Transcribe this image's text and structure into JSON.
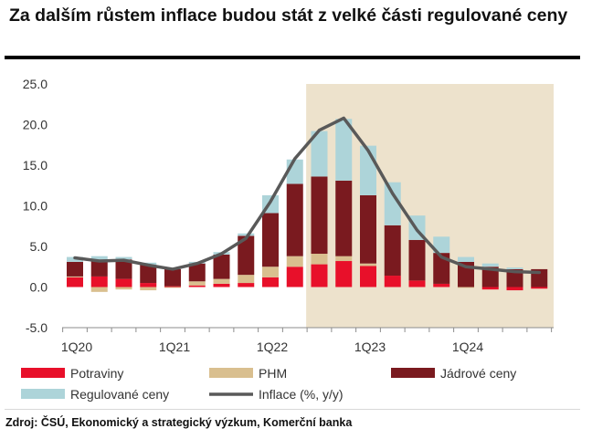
{
  "title": "Za dalším růstem inflace budou stát z velké části regulované ceny",
  "source": "Zdroj: ČSÚ, Ekonomický a strategický výzkum, Komerční banka",
  "colors": {
    "potraviny": "#e8102a",
    "phm": "#d9bf8f",
    "jadrove": "#7a1a1f",
    "regulovane": "#add4d9",
    "inflace": "#595959",
    "forecast": "#ede2cc"
  },
  "chart_data": {
    "type": "bar",
    "stacked": true,
    "ylim": [
      -5,
      25
    ],
    "yticks": [
      "25.0",
      "20.0",
      "15.0",
      "10.0",
      "5.0",
      "0.0",
      "-5.0"
    ],
    "xtick_labels": [
      {
        "label": "1Q20",
        "index": 0
      },
      {
        "label": "1Q21",
        "index": 4
      },
      {
        "label": "1Q22",
        "index": 8
      },
      {
        "label": "1Q23",
        "index": 12
      },
      {
        "label": "1Q24",
        "index": 16
      }
    ],
    "categories": [
      "Q1 2020",
      "Q2 2020",
      "Q3 2020",
      "Q4 2020",
      "Q1 2021",
      "Q2 2021",
      "Q3 2021",
      "Q4 2021",
      "Q1 2022",
      "Q2 2022",
      "Q3 2022",
      "Q4 2022",
      "Q1 2023",
      "Q2 2023",
      "Q3 2023",
      "Q4 2023",
      "Q1 2024",
      "Q2 2024",
      "Q3 2024",
      "Q4 2024"
    ],
    "forecast_from_index": 10,
    "legend_position": "bottom",
    "series": [
      {
        "name": "Potraviny",
        "key": "potraviny",
        "values": [
          1.2,
          1.3,
          1.0,
          0.5,
          0.1,
          0.2,
          0.4,
          0.5,
          1.2,
          2.5,
          2.8,
          3.2,
          2.6,
          1.4,
          0.8,
          0.4,
          0.0,
          -0.3,
          -0.4,
          -0.2
        ]
      },
      {
        "name": "PHM",
        "key": "phm",
        "values": [
          0.1,
          -0.6,
          -0.3,
          -0.4,
          -0.1,
          0.5,
          0.6,
          1.0,
          1.3,
          1.3,
          1.3,
          0.6,
          0.3,
          0.0,
          0.0,
          0.0,
          -0.1,
          0.0,
          0.0,
          0.0
        ]
      },
      {
        "name": "Jádrové ceny",
        "key": "jadrove",
        "values": [
          1.8,
          2.1,
          2.4,
          2.2,
          2.1,
          2.2,
          3.0,
          4.8,
          6.6,
          8.9,
          9.5,
          9.3,
          8.4,
          6.2,
          5.0,
          3.8,
          3.1,
          2.5,
          2.2,
          2.2
        ]
      },
      {
        "name": "Regulované ceny",
        "key": "regulovane",
        "values": [
          0.6,
          0.4,
          0.3,
          0.3,
          0.1,
          0.2,
          0.3,
          0.3,
          2.2,
          3.0,
          5.6,
          7.6,
          6.1,
          5.3,
          3.0,
          2.0,
          0.6,
          0.4,
          0.2,
          0.0
        ]
      }
    ],
    "line": {
      "name": "Inflace (%, y/y)",
      "key": "inflace",
      "values": [
        3.6,
        3.2,
        3.3,
        2.7,
        2.2,
        2.9,
        4.1,
        6.0,
        10.5,
        15.8,
        19.3,
        20.8,
        16.8,
        11.5,
        7.0,
        3.7,
        2.5,
        2.2,
        1.9,
        1.8
      ]
    }
  }
}
